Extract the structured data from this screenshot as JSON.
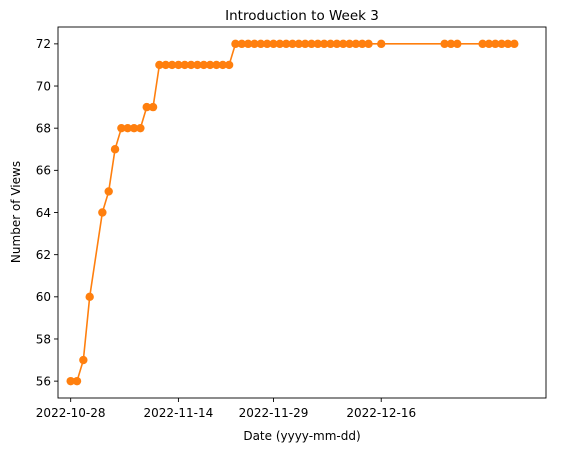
{
  "chart_data": {
    "type": "line",
    "title": "Introduction to Week 3",
    "xlabel": "Date (yyyy-mm-dd)",
    "ylabel": "Number of Views",
    "x_tick_labels": [
      "2022-10-28",
      "2022-11-14",
      "2022-11-29",
      "2022-12-16"
    ],
    "y_ticks": [
      56,
      58,
      60,
      62,
      64,
      66,
      68,
      70,
      72
    ],
    "xlim": [
      "2022-10-26",
      "2023-01-11"
    ],
    "ylim": [
      55.2,
      72.8
    ],
    "grid": false,
    "legend": null,
    "colors": {
      "line": "#ff7f0e",
      "marker": "#ff7f0e"
    },
    "series": [
      {
        "x": [
          "2022-10-28",
          "2022-10-29",
          "2022-10-30",
          "2022-10-31",
          "2022-11-02",
          "2022-11-03",
          "2022-11-04",
          "2022-11-05",
          "2022-11-06",
          "2022-11-07",
          "2022-11-08",
          "2022-11-09",
          "2022-11-10",
          "2022-11-11",
          "2022-11-12",
          "2022-11-13",
          "2022-11-14",
          "2022-11-15",
          "2022-11-16",
          "2022-11-17",
          "2022-11-18",
          "2022-11-19",
          "2022-11-20",
          "2022-11-21",
          "2022-11-22",
          "2022-11-23",
          "2022-11-24",
          "2022-11-25",
          "2022-11-26",
          "2022-11-27",
          "2022-11-28",
          "2022-11-29",
          "2022-11-30",
          "2022-12-01",
          "2022-12-02",
          "2022-12-03",
          "2022-12-04",
          "2022-12-05",
          "2022-12-06",
          "2022-12-07",
          "2022-12-08",
          "2022-12-09",
          "2022-12-10",
          "2022-12-11",
          "2022-12-12",
          "2022-12-13",
          "2022-12-14",
          "2022-12-16",
          "2022-12-26",
          "2022-12-27",
          "2022-12-28",
          "2023-01-01",
          "2023-01-02",
          "2023-01-03",
          "2023-01-04",
          "2023-01-05",
          "2023-01-06"
        ],
        "values": [
          56,
          56,
          57,
          60,
          64,
          65,
          67,
          68,
          68,
          68,
          68,
          69,
          69,
          71,
          71,
          71,
          71,
          71,
          71,
          71,
          71,
          71,
          71,
          71,
          71,
          72,
          72,
          72,
          72,
          72,
          72,
          72,
          72,
          72,
          72,
          72,
          72,
          72,
          72,
          72,
          72,
          72,
          72,
          72,
          72,
          72,
          72,
          72,
          72,
          72,
          72,
          72,
          72,
          72,
          72,
          72,
          72
        ]
      }
    ]
  }
}
